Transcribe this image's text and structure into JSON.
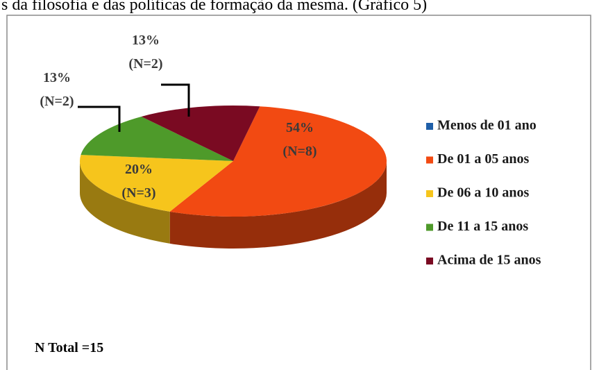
{
  "chart_data": {
    "type": "pie",
    "caption": "s da filosofia e das políticas de formação da mesma. (Gráfico 5)",
    "categories": [
      "Menos de 01 ano",
      "De 01 a 05 anos",
      "De 06 a 10 anos",
      "De 11 a 15 anos",
      "Acima de 15 anos"
    ],
    "values": [
      0,
      54,
      20,
      13,
      13
    ],
    "value_labels": [
      null,
      "54%",
      "20%",
      "13%",
      "13%"
    ],
    "n_labels": [
      null,
      "(N=8)",
      "(N=3)",
      "(N=2)",
      "(N=2)"
    ],
    "colors": [
      "#1f5fa8",
      "#f24a12",
      "#f6c51c",
      "#4e9a2a",
      "#7a0a22"
    ],
    "note": "N Total =15",
    "legend": "right"
  }
}
